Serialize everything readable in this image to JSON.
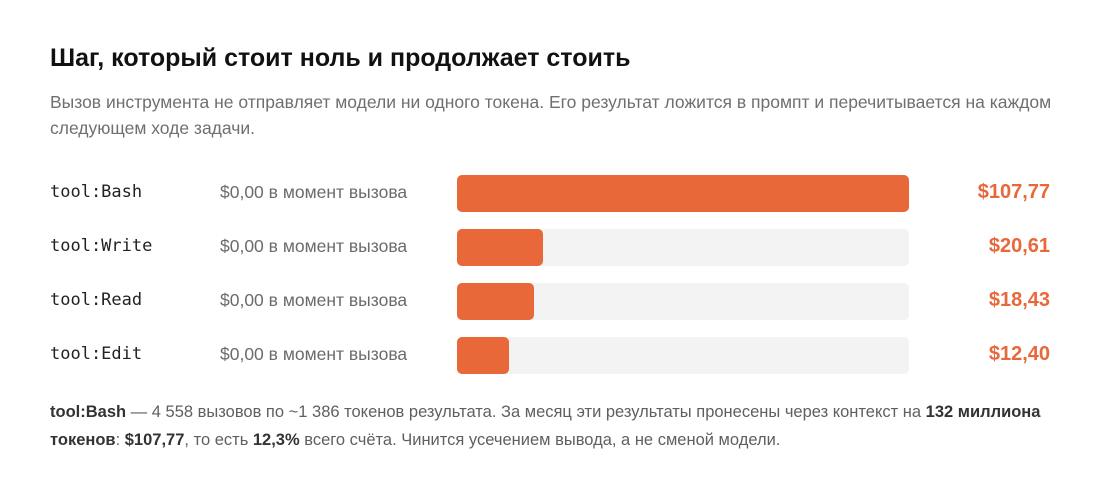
{
  "title": "Шаг, который стоит ноль и продолжает стоить",
  "subtitle": "Вызов инструмента не отправляет модели ни одного токена. Его результат ложится в промпт и перечитывается на каждом следующем ходе задачи.",
  "colors": {
    "accent": "#e8683a",
    "track": "#f3f3f3"
  },
  "chart_data": {
    "type": "bar",
    "orientation": "horizontal",
    "categories": [
      "tool:Bash",
      "tool:Write",
      "tool:Read",
      "tool:Edit"
    ],
    "call_cost_labels": [
      "$0,00 в момент вызова",
      "$0,00 в момент вызова",
      "$0,00 в момент вызова",
      "$0,00 в момент вызова"
    ],
    "values": [
      107.77,
      20.61,
      18.43,
      12.4
    ],
    "value_labels": [
      "$107,77",
      "$20,61",
      "$18,43",
      "$12,40"
    ],
    "xlim": [
      0,
      107.77
    ],
    "grid": false,
    "legend": "none"
  },
  "footnote": {
    "p1_bold": "tool:Bash",
    "p2": " — 4 558 вызовов по ~1 386 токенов результата. За месяц эти результаты пронесены через контекст на ",
    "p3_bold": "132 миллиона токенов",
    "p4": ": ",
    "p5_bold": "$107,77",
    "p6": ", то есть ",
    "p7_bold": "12,3%",
    "p8": " всего счёта. Чинится усечением вывода, а не сменой модели."
  }
}
